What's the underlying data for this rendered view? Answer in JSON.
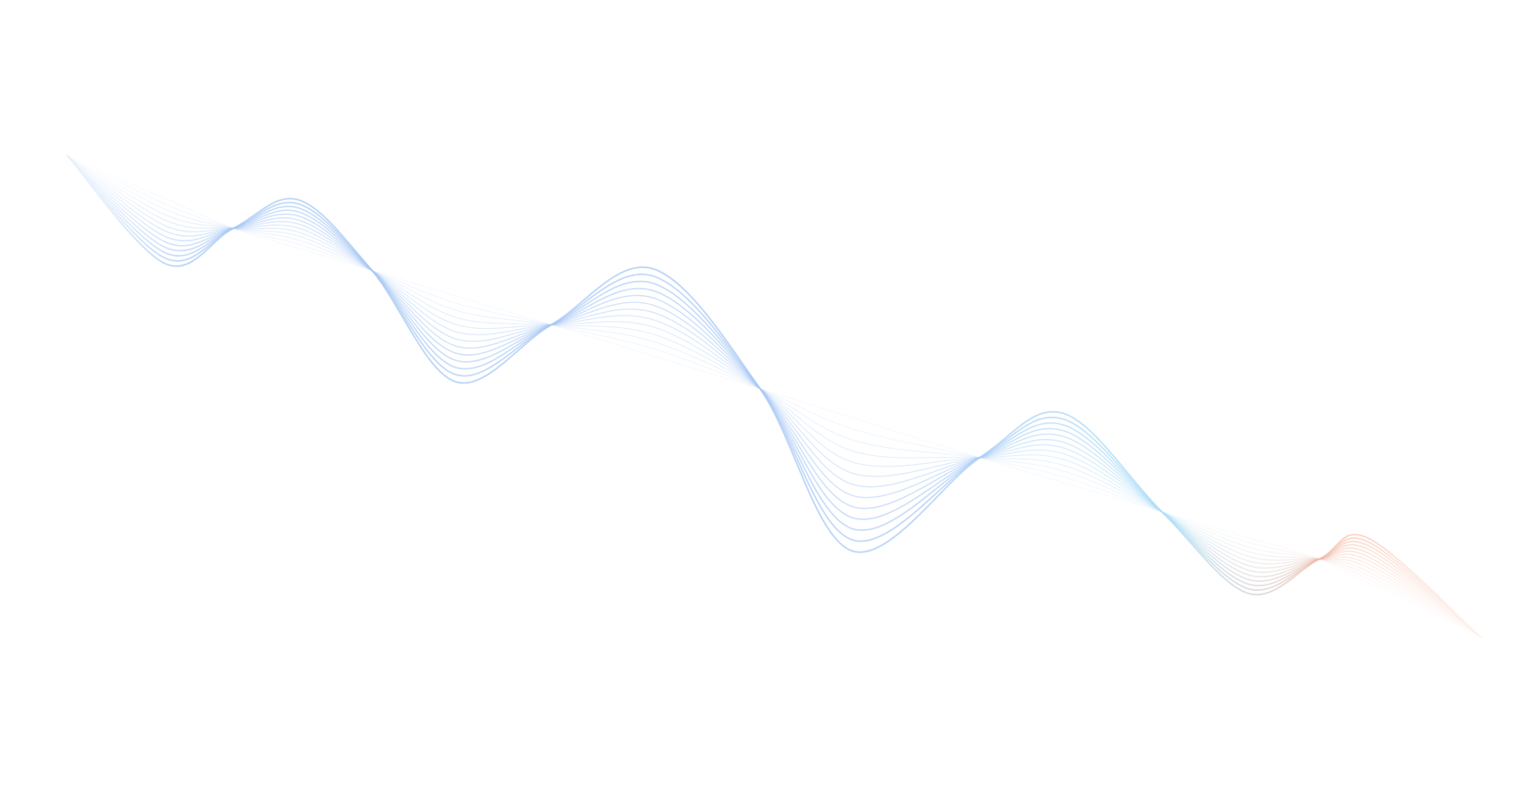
{
  "background_color": "#ffffff",
  "wave": {
    "line_count": 13,
    "colors": {
      "start": "#a8c8f4",
      "middle": "#aee0f8",
      "end": "#f6b49a"
    }
  }
}
